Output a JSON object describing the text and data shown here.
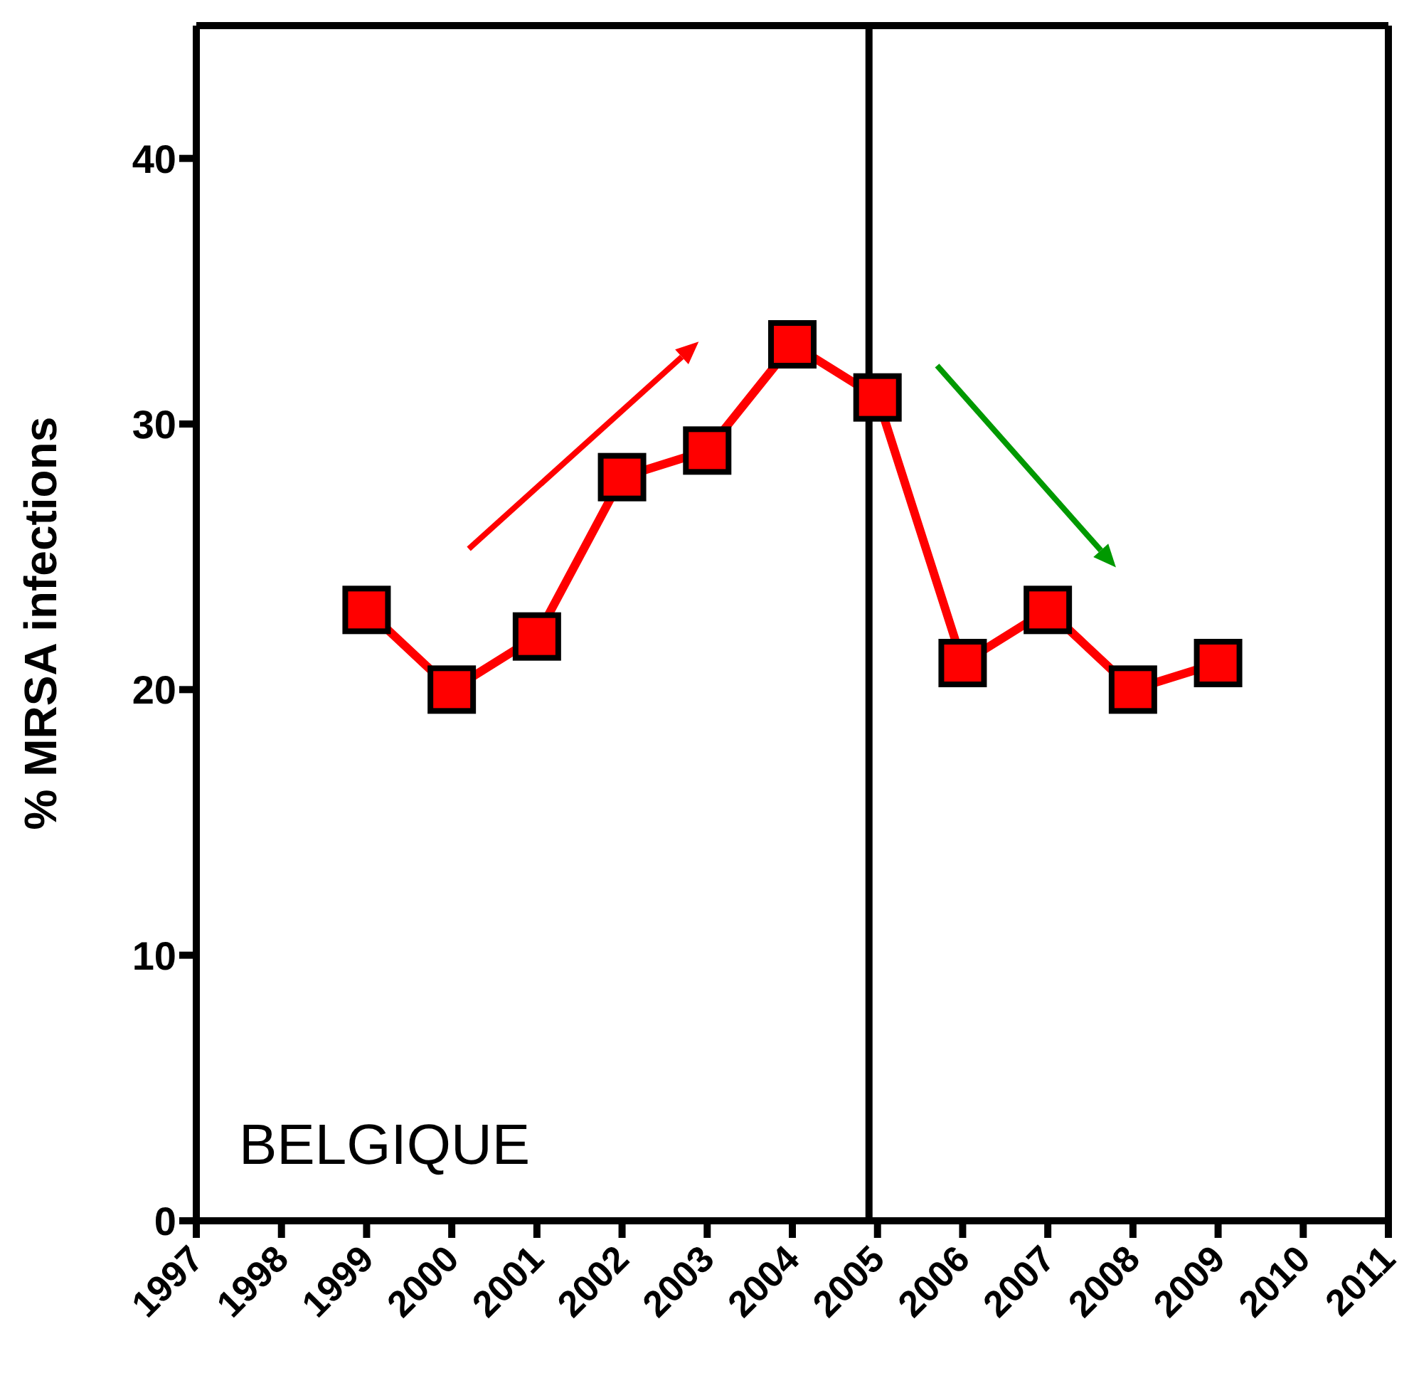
{
  "chart_data": {
    "type": "line",
    "ylabel": "% MRSA infections",
    "x": [
      1999,
      2000,
      2001,
      2002,
      2003,
      2004,
      2005,
      2006,
      2007,
      2008,
      2009
    ],
    "series": [
      {
        "color": "#ff0000",
        "values": [
          23,
          20,
          22,
          28,
          29,
          33,
          31,
          21,
          23,
          20,
          21
        ]
      }
    ],
    "xlim": [
      1997,
      2011
    ],
    "xticks": [
      1997,
      1998,
      1999,
      2000,
      2001,
      2002,
      2003,
      2004,
      2005,
      2006,
      2007,
      2008,
      2009,
      2010,
      2011
    ],
    "ylim": [
      0,
      45
    ],
    "yticks": [
      0,
      10,
      20,
      30,
      40
    ],
    "ref_lines": [
      {
        "axis": "x",
        "value": 2004.9,
        "color": "#000000"
      }
    ],
    "annotations": [
      "BELGIQUE"
    ],
    "marker": "square",
    "line_style": "solid"
  }
}
